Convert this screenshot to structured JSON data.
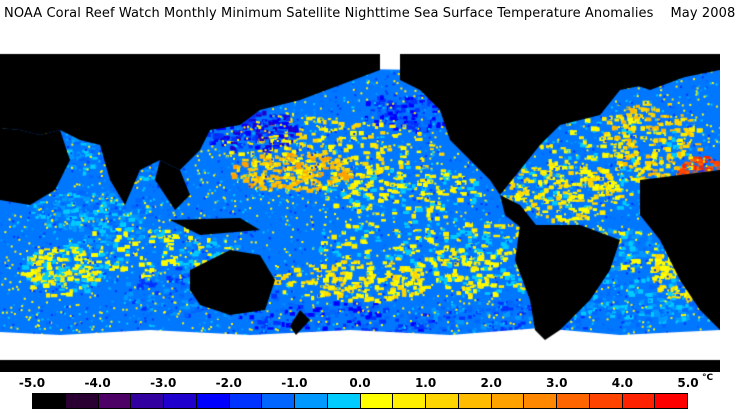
{
  "title": "NOAA Coral Reef Watch Monthly Minimum Satellite Nighttime Sea Surface Temperature Anomalies    May 2008",
  "colors": {
    "land": "#000000",
    "ice": "#ffffff",
    "scale": [
      "#000000",
      "#2a0033",
      "#4d0066",
      "#3300a0",
      "#1f00cc",
      "#0000ff",
      "#0033ff",
      "#0066ff",
      "#0099ff",
      "#00ccff",
      "#ffff00",
      "#ffee00",
      "#ffd500",
      "#ffbb00",
      "#ffa200",
      "#ff8800",
      "#ff6600",
      "#ff4400",
      "#ff2200",
      "#ff0000"
    ]
  },
  "legend": {
    "ticks": [
      "-5.0",
      "-4.0",
      "-3.0",
      "-2.0",
      "-1.0",
      "0.0",
      "1.0",
      "2.0",
      "3.0",
      "4.0",
      "5.0"
    ],
    "unit": "°C"
  }
}
